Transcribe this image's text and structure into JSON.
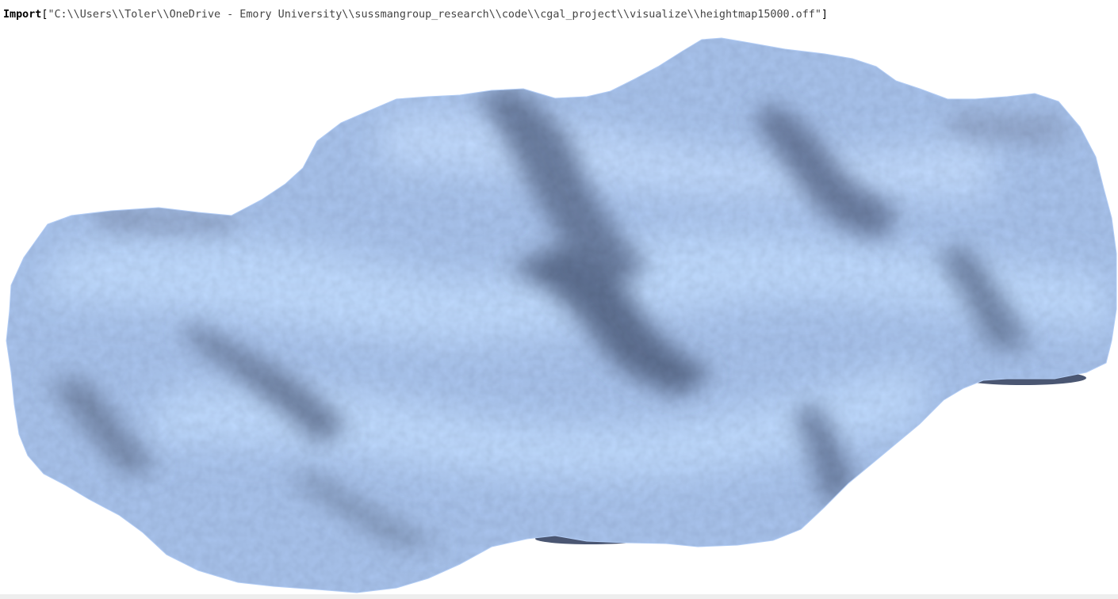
{
  "notebook": {
    "input": {
      "function_name": "Import",
      "open_bracket": "[",
      "path_string": "\"C:\\\\Users\\\\Toler\\\\OneDrive - Emory University\\\\sussmangroup_research\\\\code\\\\cgal_project\\\\visualize\\\\heightmap15000.off\"",
      "close_bracket": "]"
    },
    "output": {
      "type": "3D mesh surface",
      "colors": {
        "surface_light": "#bcd8ff",
        "surface_mid": "#97b2dc",
        "surface_dark": "#5d6f90",
        "underside": "#4a5672"
      }
    }
  }
}
